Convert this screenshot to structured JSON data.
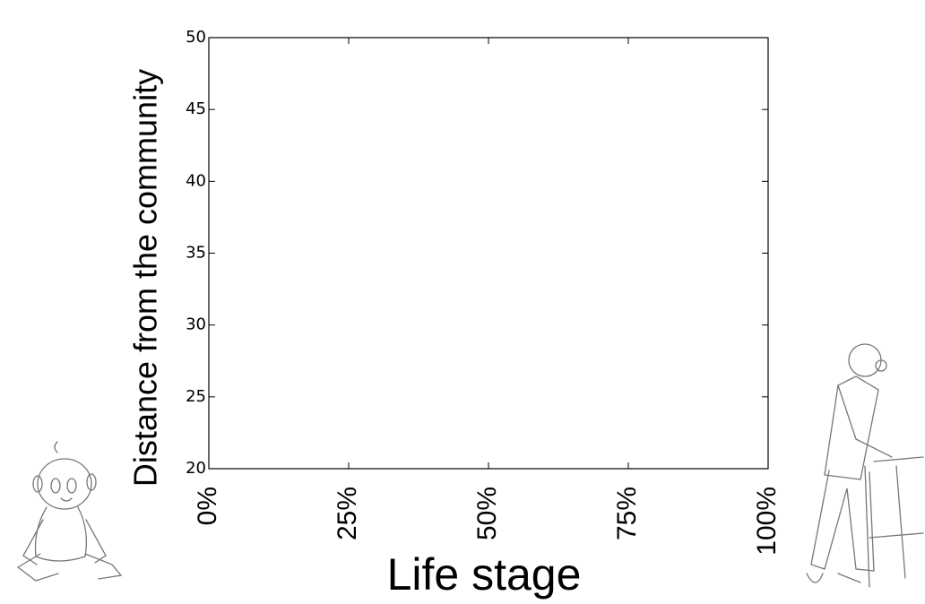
{
  "chart_data": {
    "type": "line",
    "xlabel": "Life stage",
    "ylabel": "Distance from the community",
    "xlim": [
      0,
      100
    ],
    "xticks": [
      {
        "value": 0,
        "label": "0%"
      },
      {
        "value": 25,
        "label": "25%"
      },
      {
        "value": 50,
        "label": "50%"
      },
      {
        "value": 75,
        "label": "75%"
      },
      {
        "value": 100,
        "label": "100%"
      }
    ],
    "ylim": [
      20,
      50
    ],
    "yticks": [
      20,
      25,
      30,
      35,
      40,
      45,
      50
    ]
  }
}
